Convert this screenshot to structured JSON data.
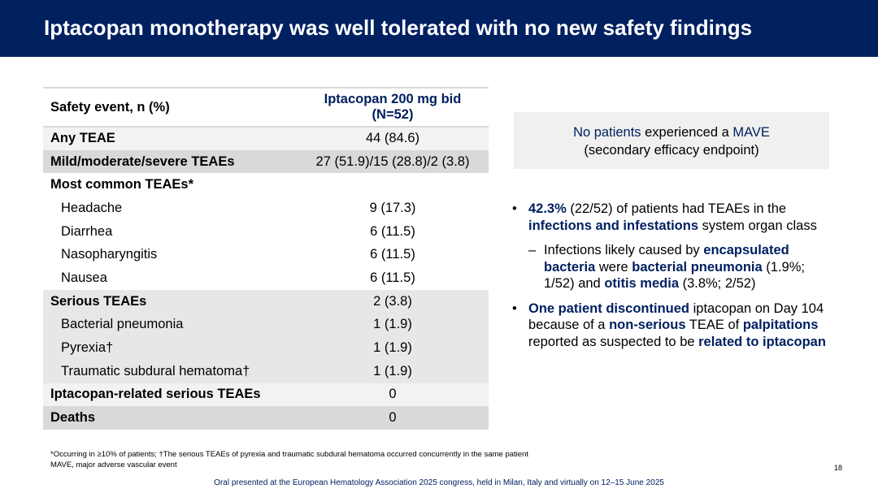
{
  "title": "Iptacopan monotherapy was well tolerated with no new safety findings",
  "table": {
    "header": [
      "Safety event, n (%)",
      "Iptacopan 200 mg bid",
      "(N=52)"
    ],
    "rows": [
      {
        "label": "Any TEAE",
        "value": "44 (84.6)"
      },
      {
        "label": "Mild/moderate/severe TEAEs",
        "value": "27 (51.9)/15 (28.8)/2 (3.8)"
      },
      {
        "label": "Most common TEAEs*",
        "value": ""
      },
      {
        "label": "Headache",
        "value": "9 (17.3)"
      },
      {
        "label": "Diarrhea",
        "value": "6 (11.5)"
      },
      {
        "label": "Nasopharyngitis",
        "value": "6 (11.5)"
      },
      {
        "label": "Nausea",
        "value": "6 (11.5)"
      },
      {
        "label": "Serious TEAEs",
        "value": "2 (3.8)"
      },
      {
        "label": "Bacterial pneumonia",
        "value": "1 (1.9)"
      },
      {
        "label": "Pyrexia†",
        "value": "1 (1.9)"
      },
      {
        "label": "Traumatic subdural hematoma†",
        "value": "1 (1.9)"
      },
      {
        "label": "Iptacopan-related serious TEAEs",
        "value": "0"
      },
      {
        "label": "Deaths",
        "value": "0"
      }
    ]
  },
  "mave_box": [
    "No patients",
    " experienced a ",
    "MAVE",
    "(secondary efficacy endpoint)"
  ],
  "bullets": {
    "b1": [
      "42.3%",
      " (22/52) of patients had TEAEs in the ",
      "infections and infestations",
      " system organ class"
    ],
    "s1": [
      "Infections likely caused by ",
      "encapsulated bacteria",
      " were ",
      "bacterial pneumonia",
      " (1.9%; 1/52) and ",
      "otitis media",
      " (3.8%; 2/52)"
    ],
    "b2": [
      "One patient discontinued",
      " iptacopan on Day 104 because of a ",
      "non-serious",
      " TEAE of ",
      "palpitations",
      " reported as suspected to be ",
      "related to iptacopan"
    ]
  },
  "footnotes": [
    "*Occurring in ≥10% of patients; †The serious TEAEs of pyrexia and traumatic subdural hematoma occurred concurrently in the same patient",
    "MAVE, major adverse vascular event"
  ],
  "page_number": "18",
  "source": "Oral presented at the European Hematology Association 2025 congress, held in Milan, Italy and virtually on 12–15 June 2025"
}
